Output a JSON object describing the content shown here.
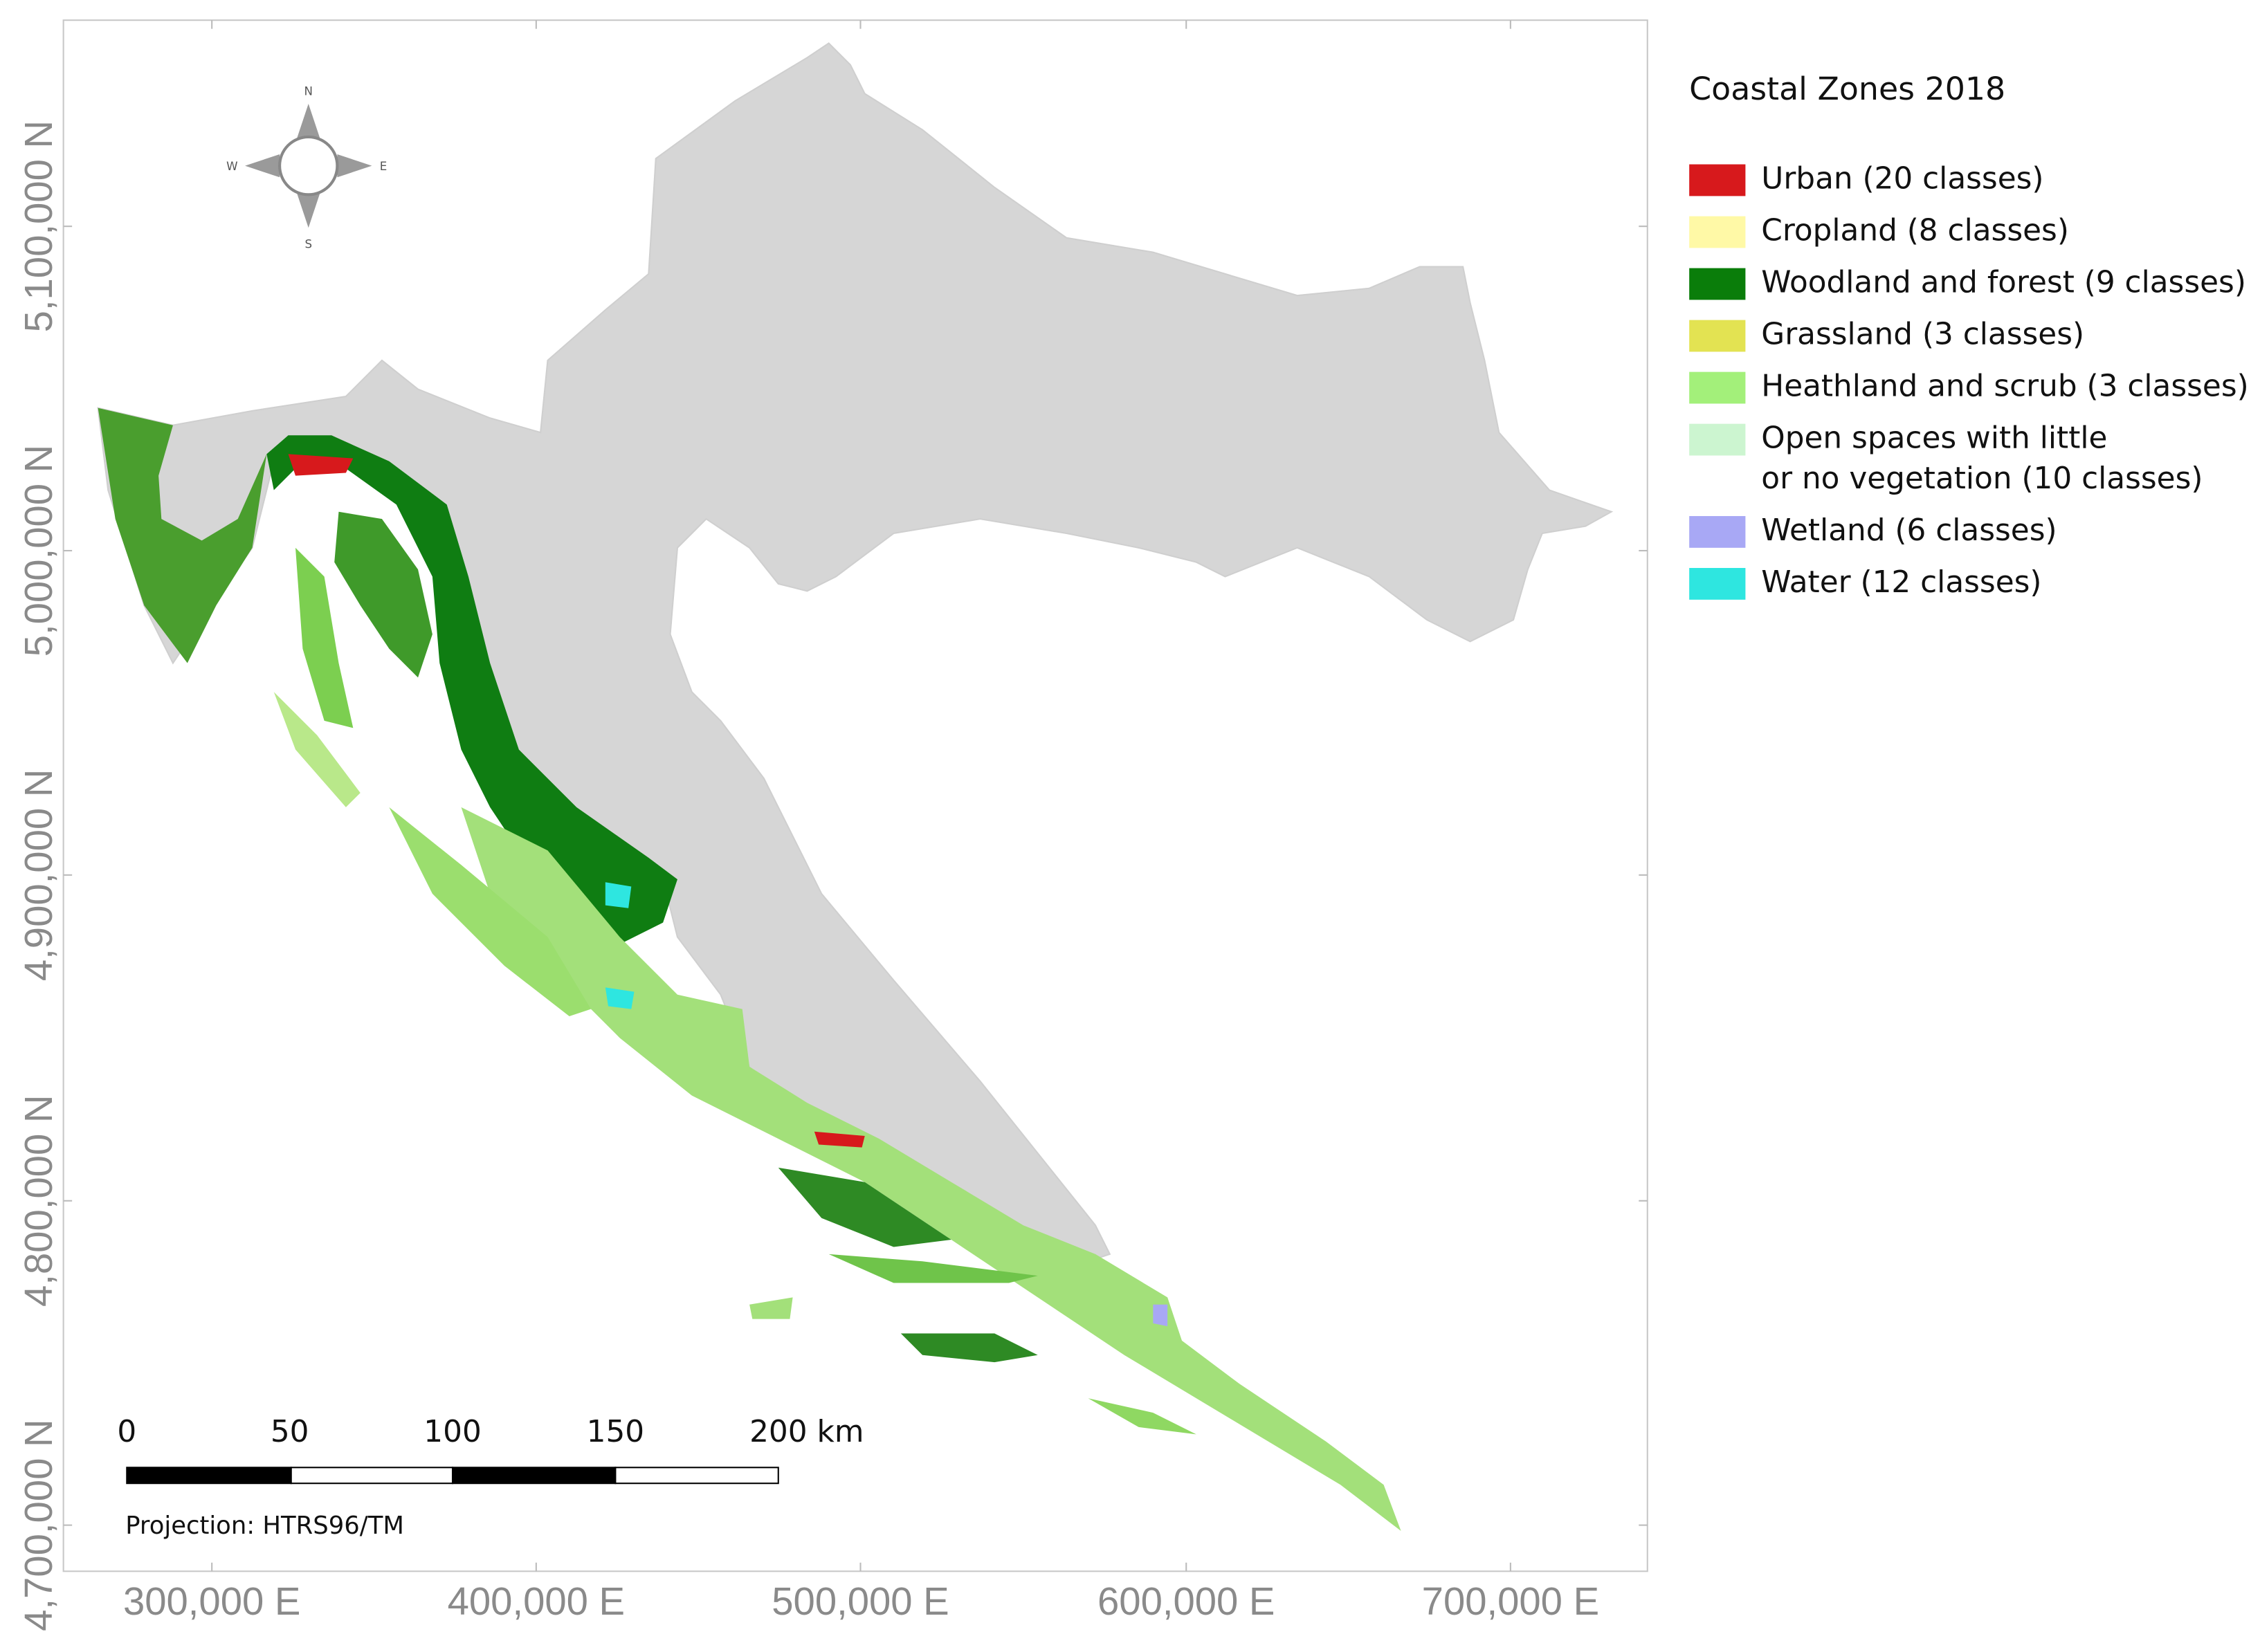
{
  "map": {
    "title": "Coastal Zones 2018",
    "legend": [
      {
        "lines": [
          "Urban (20 classes)"
        ],
        "color": "#d7191c"
      },
      {
        "lines": [
          "Cropland (8 classes)"
        ],
        "color": "#fff9a6"
      },
      {
        "lines": [
          "Woodland and forest (9 classes)"
        ],
        "color": "#0a7d0a"
      },
      {
        "lines": [
          "Grassland (3 classes)"
        ],
        "color": "#e3e352"
      },
      {
        "lines": [
          "Heathland and scrub (3 classes)"
        ],
        "color": "#a3f07a"
      },
      {
        "lines": [
          "Open spaces with little",
          "or no vegetation (10 classes)"
        ],
        "color": "#ccf5d0"
      },
      {
        "lines": [
          "Wetland (6 classes)"
        ],
        "color": "#a8a8f5"
      },
      {
        "lines": [
          "Water (12 classes)"
        ],
        "color": "#2ee6e0"
      }
    ],
    "x_labels": [
      "300,000 E",
      "400,000 E",
      "500,000 E",
      "600,000 E",
      "700,000 E"
    ],
    "y_labels": [
      "5,100,000 N",
      "5,000,000 N",
      "4,900,000 N",
      "4,800,000 N",
      "4,700,000 N"
    ],
    "compass": {
      "n": "N",
      "s": "S",
      "e": "E",
      "w": "W"
    },
    "scale_bar": {
      "labels": [
        "0",
        "50",
        "100",
        "150",
        "200 km"
      ]
    },
    "projection": "Projection: HTRS96/TM"
  }
}
